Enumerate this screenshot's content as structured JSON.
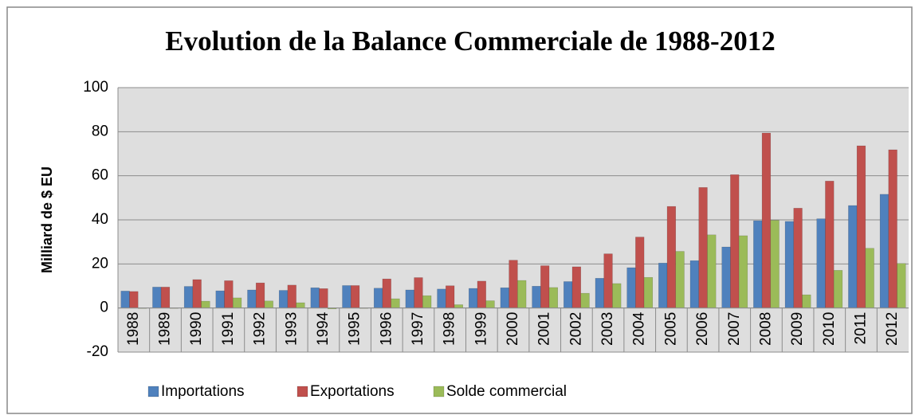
{
  "chart_data": {
    "type": "bar",
    "title": "Evolution de la Balance Commerciale de 1988-2012",
    "y_label": "Milliard de $ EU",
    "categories": [
      "1988",
      "1989",
      "1990",
      "1991",
      "1992",
      "1993",
      "1994",
      "1995",
      "1996",
      "1997",
      "1998",
      "1999",
      "2000",
      "2001",
      "2002",
      "2003",
      "2004",
      "2005",
      "2006",
      "2007",
      "2008",
      "2009",
      "2010",
      "2011",
      "2012"
    ],
    "series": [
      {
        "name": "Importations",
        "color": "#4f81bd",
        "values": [
          7.7,
          9.5,
          9.8,
          7.8,
          8.2,
          8.0,
          9.2,
          10.2,
          9.0,
          8.2,
          8.6,
          8.9,
          9.2,
          9.9,
          12.0,
          13.5,
          18.3,
          20.4,
          21.5,
          27.7,
          39.6,
          39.3,
          40.5,
          46.5,
          51.6
        ]
      },
      {
        "name": "Exportations",
        "color": "#c0504d",
        "values": [
          7.5,
          9.5,
          12.9,
          12.4,
          11.4,
          10.4,
          8.8,
          10.2,
          13.2,
          13.8,
          10.1,
          12.2,
          21.7,
          19.2,
          18.7,
          24.6,
          32.2,
          46.1,
          54.7,
          60.5,
          79.4,
          45.3,
          57.6,
          73.6,
          71.8
        ]
      },
      {
        "name": "Solde commercial",
        "color": "#9bbb59",
        "values": [
          -0.2,
          0,
          3.1,
          4.6,
          3.2,
          2.4,
          -0.4,
          0,
          4.2,
          5.6,
          1.5,
          3.3,
          12.5,
          9.3,
          6.7,
          11.1,
          13.9,
          25.7,
          33.2,
          32.8,
          39.8,
          6.0,
          17.1,
          27.1,
          20.2
        ]
      }
    ],
    "ylim": [
      -20,
      100
    ],
    "yticks": [
      -20,
      0,
      20,
      40,
      60,
      80,
      100
    ],
    "grid": true,
    "legend": "bottom"
  }
}
